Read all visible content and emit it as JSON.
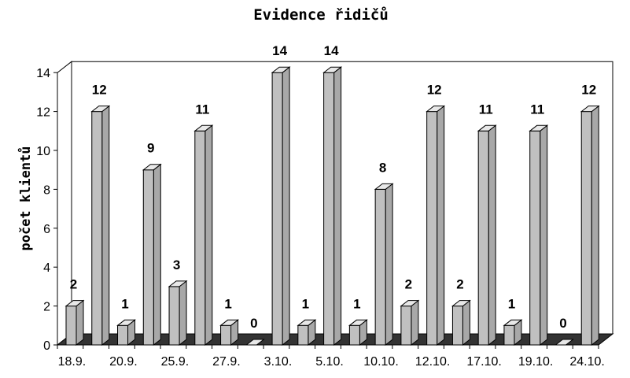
{
  "chart_data": {
    "type": "bar",
    "title": "Evidence řidičů",
    "ylabel": "počet klientů",
    "xlabel": "",
    "ylim": [
      0,
      14
    ],
    "yticks": [
      0,
      2,
      4,
      6,
      8,
      10,
      12,
      14
    ],
    "grid": false,
    "legend": "none",
    "style": "3d-column",
    "bar_color": "#c0c0c0",
    "floor_color": "#333333",
    "x_tick_labels": [
      "18.9.",
      "20.9.",
      "25.9.",
      "27.9.",
      "3.10.",
      "5.10.",
      "10.10.",
      "12.10.",
      "17.10.",
      "19.10.",
      "24.10."
    ],
    "values": [
      2,
      12,
      1,
      9,
      3,
      11,
      1,
      0,
      14,
      1,
      14,
      1,
      8,
      2,
      12,
      2,
      11,
      1,
      11,
      0,
      12
    ]
  }
}
